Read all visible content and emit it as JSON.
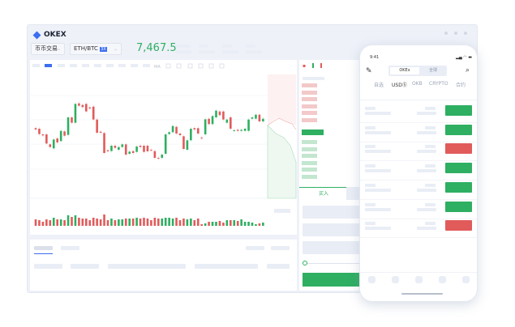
{
  "window": {
    "logo_text": "OKEX"
  },
  "toolbar": {
    "market_select": "币币交易",
    "pair_select": "ETH/BTC",
    "leverage_badge": "3X",
    "last_price": "7,467.5"
  },
  "chart_toolbar": {
    "indicator_select": "MA"
  },
  "colors": {
    "up": "#2eaf62",
    "down": "#e15b5b",
    "accent": "#3c6ef0",
    "up_light": "#c3e6cf",
    "down_light": "#f3c9c9"
  },
  "chart_data": {
    "type": "candlestick",
    "candles": [
      [
        180,
        175,
        "down"
      ],
      [
        178,
        158,
        "down"
      ],
      [
        157,
        153,
        "down"
      ],
      [
        157,
        123,
        "down"
      ],
      [
        120,
        110,
        "down"
      ],
      [
        105,
        138,
        "up"
      ],
      [
        142,
        127,
        "down"
      ],
      [
        132,
        170,
        "up"
      ],
      [
        168,
        152,
        "down"
      ],
      [
        155,
        220,
        "up"
      ],
      [
        220,
        200,
        "down"
      ],
      [
        200,
        270,
        "up"
      ],
      [
        272,
        263,
        "down"
      ],
      [
        266,
        258,
        "down"
      ],
      [
        270,
        242,
        "down"
      ],
      [
        257,
        253,
        "down"
      ],
      [
        260,
        212,
        "down"
      ],
      [
        212,
        163,
        "down"
      ],
      [
        167,
        163,
        "down"
      ],
      [
        162,
        88,
        "down"
      ],
      [
        98,
        94,
        "down"
      ],
      [
        95,
        115,
        "up"
      ],
      [
        115,
        107,
        "down"
      ],
      [
        100,
        110,
        "up"
      ],
      [
        110,
        120,
        "up"
      ],
      [
        120,
        82,
        "down"
      ],
      [
        85,
        93,
        "up"
      ],
      [
        95,
        88,
        "down"
      ],
      [
        92,
        112,
        "up"
      ],
      [
        115,
        110,
        "down"
      ],
      [
        115,
        92,
        "down"
      ],
      [
        115,
        94,
        "down"
      ],
      [
        100,
        97,
        "down"
      ],
      [
        95,
        70,
        "down"
      ],
      [
        70,
        67,
        "down"
      ],
      [
        70,
        82,
        "up"
      ],
      [
        85,
        157,
        "up"
      ],
      [
        158,
        165,
        "up"
      ],
      [
        165,
        188,
        "up"
      ],
      [
        185,
        160,
        "down"
      ],
      [
        160,
        154,
        "down"
      ],
      [
        150,
        103,
        "down"
      ],
      [
        100,
        135,
        "up"
      ],
      [
        135,
        178,
        "up"
      ],
      [
        180,
        175,
        "down"
      ],
      [
        180,
        160,
        "down"
      ],
      [
        145,
        142,
        "down"
      ],
      [
        157,
        213,
        "up"
      ],
      [
        215,
        195,
        "down"
      ],
      [
        195,
        225,
        "up"
      ],
      [
        220,
        245,
        "up"
      ],
      [
        242,
        228,
        "down"
      ],
      [
        242,
        212,
        "down"
      ],
      [
        200,
        212,
        "up"
      ],
      [
        220,
        178,
        "down"
      ],
      [
        170,
        172,
        "up"
      ],
      [
        174,
        170,
        "down"
      ],
      [
        170,
        174,
        "up"
      ],
      [
        170,
        178,
        "up"
      ],
      [
        170,
        212,
        "up"
      ],
      [
        215,
        220,
        "up"
      ],
      [
        215,
        230,
        "up"
      ],
      [
        230,
        205,
        "down"
      ],
      [
        205,
        215,
        "up"
      ]
    ],
    "volumes": [
      8,
      7,
      5,
      8,
      7,
      10,
      8,
      8,
      7,
      13,
      11,
      13,
      10,
      9,
      9,
      7,
      10,
      9,
      8,
      14,
      7,
      9,
      7,
      8,
      8,
      9,
      9,
      9,
      10,
      9,
      10,
      9,
      7,
      10,
      9,
      9,
      10,
      10,
      9,
      10,
      7,
      9,
      8,
      9,
      7,
      9,
      2,
      3,
      5,
      5,
      5,
      6,
      4,
      7,
      7,
      7,
      6,
      8,
      5,
      5,
      4,
      2,
      3,
      4
    ],
    "grid": true
  },
  "orderbook": {
    "buy_tab": "买入"
  },
  "phone": {
    "status_time": "9:41",
    "segments": [
      "OKEx",
      "全球"
    ],
    "tabs": [
      "自选",
      "USDⓈ",
      "OKB",
      "CRYPTO",
      "合约"
    ],
    "rows": [
      "up",
      "up",
      "down",
      "up",
      "up",
      "up",
      "down"
    ]
  }
}
